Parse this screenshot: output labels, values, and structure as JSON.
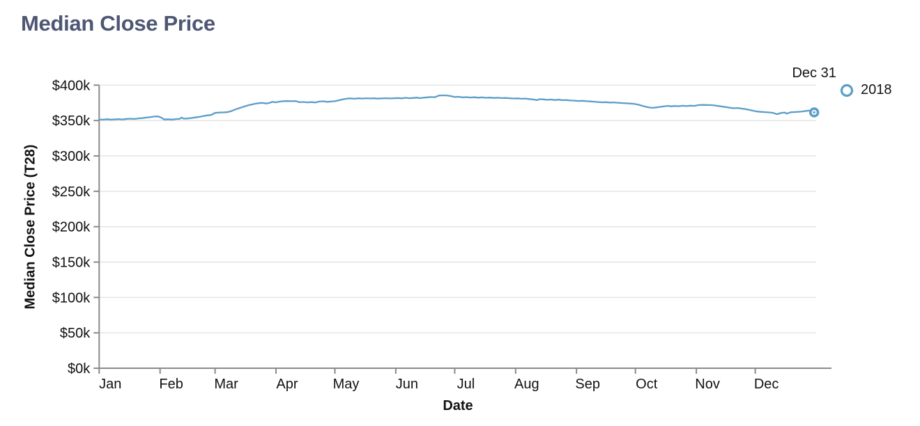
{
  "header": {
    "title": "Median Close Price"
  },
  "chart_data": {
    "type": "line",
    "title": "Median Close Price",
    "xlabel": "Date",
    "ylabel": "Median Close Price (T28)",
    "x_tick_labels": [
      "Jan",
      "Feb",
      "Mar",
      "Apr",
      "May",
      "Jun",
      "Jul",
      "Aug",
      "Sep",
      "Oct",
      "Nov",
      "Dec"
    ],
    "y_tick_labels": [
      "$0k",
      "$50k",
      "$100k",
      "$150k",
      "$200k",
      "$250k",
      "$300k",
      "$350k",
      "$400k"
    ],
    "ylim_k": [
      0,
      400
    ],
    "y_tick_step_k": 50,
    "grid": true,
    "legend": {
      "position": "top-right",
      "entries": [
        {
          "label": "2018",
          "marker": "open-circle",
          "color": "#5b9dc9"
        }
      ]
    },
    "annotation": {
      "text": "Dec 31",
      "attach": "last-point"
    },
    "last_point": {
      "label": "Dec 31",
      "value_k": 361.5
    },
    "series": [
      {
        "name": "2018",
        "unit": "USD (thousands)",
        "points_day_valuek": [
          [
            0,
            351.5
          ],
          [
            2,
            351.2
          ],
          [
            4,
            351.8
          ],
          [
            6,
            351.3
          ],
          [
            8,
            351.6
          ],
          [
            10,
            352.0
          ],
          [
            12,
            351.5
          ],
          [
            14,
            352.3
          ],
          [
            16,
            352.6
          ],
          [
            18,
            352.2
          ],
          [
            20,
            353.0
          ],
          [
            22,
            353.4
          ],
          [
            24,
            354.2
          ],
          [
            26,
            354.8
          ],
          [
            28,
            355.6
          ],
          [
            30,
            355.8
          ],
          [
            32,
            353.5
          ],
          [
            33,
            351.4
          ],
          [
            35,
            351.8
          ],
          [
            37,
            351.3
          ],
          [
            39,
            352.0
          ],
          [
            41,
            352.4
          ],
          [
            42,
            354.3
          ],
          [
            43,
            352.6
          ],
          [
            45,
            352.9
          ],
          [
            47,
            353.6
          ],
          [
            49,
            354.4
          ],
          [
            51,
            355.2
          ],
          [
            53,
            356.2
          ],
          [
            55,
            357.2
          ],
          [
            57,
            357.8
          ],
          [
            59,
            360.8
          ],
          [
            61,
            361.2
          ],
          [
            63,
            361.4
          ],
          [
            65,
            361.7
          ],
          [
            67,
            363.0
          ],
          [
            69,
            365.3
          ],
          [
            71,
            367.2
          ],
          [
            73,
            369.0
          ],
          [
            75,
            370.8
          ],
          [
            77,
            372.3
          ],
          [
            79,
            373.4
          ],
          [
            81,
            374.4
          ],
          [
            83,
            374.9
          ],
          [
            85,
            374.0
          ],
          [
            87,
            375.1
          ],
          [
            88,
            376.4
          ],
          [
            90,
            375.7
          ],
          [
            92,
            376.8
          ],
          [
            94,
            377.4
          ],
          [
            96,
            377.5
          ],
          [
            98,
            377.3
          ],
          [
            100,
            377.5
          ],
          [
            102,
            375.8
          ],
          [
            104,
            376.2
          ],
          [
            106,
            375.6
          ],
          [
            108,
            376.0
          ],
          [
            110,
            375.5
          ],
          [
            112,
            376.8
          ],
          [
            114,
            377.2
          ],
          [
            116,
            376.4
          ],
          [
            118,
            376.8
          ],
          [
            120,
            377.3
          ],
          [
            122,
            378.6
          ],
          [
            124,
            379.8
          ],
          [
            126,
            380.9
          ],
          [
            128,
            381.3
          ],
          [
            130,
            380.7
          ],
          [
            132,
            381.4
          ],
          [
            134,
            381.0
          ],
          [
            136,
            381.5
          ],
          [
            138,
            381.1
          ],
          [
            140,
            381.4
          ],
          [
            142,
            380.9
          ],
          [
            144,
            381.3
          ],
          [
            146,
            381.5
          ],
          [
            148,
            381.2
          ],
          [
            150,
            381.4
          ],
          [
            152,
            381.8
          ],
          [
            154,
            381.3
          ],
          [
            156,
            382.1
          ],
          [
            158,
            381.5
          ],
          [
            160,
            381.9
          ],
          [
            162,
            382.4
          ],
          [
            163,
            381.6
          ],
          [
            165,
            382.2
          ],
          [
            167,
            382.8
          ],
          [
            169,
            383.2
          ],
          [
            171,
            383.0
          ],
          [
            173,
            385.3
          ],
          [
            175,
            385.5
          ],
          [
            177,
            385.4
          ],
          [
            179,
            384.6
          ],
          [
            181,
            383.2
          ],
          [
            183,
            383.6
          ],
          [
            185,
            382.7
          ],
          [
            187,
            383.1
          ],
          [
            189,
            382.5
          ],
          [
            191,
            382.9
          ],
          [
            193,
            382.3
          ],
          [
            195,
            382.7
          ],
          [
            197,
            382.1
          ],
          [
            199,
            382.4
          ],
          [
            201,
            381.9
          ],
          [
            203,
            382.2
          ],
          [
            205,
            381.7
          ],
          [
            207,
            381.9
          ],
          [
            209,
            381.4
          ],
          [
            211,
            381.1
          ],
          [
            213,
            381.3
          ],
          [
            215,
            380.7
          ],
          [
            217,
            381.0
          ],
          [
            219,
            380.3
          ],
          [
            221,
            379.7
          ],
          [
            223,
            378.8
          ],
          [
            224,
            380.1
          ],
          [
            226,
            379.9
          ],
          [
            228,
            379.2
          ],
          [
            230,
            379.6
          ],
          [
            232,
            379.0
          ],
          [
            234,
            379.4
          ],
          [
            236,
            378.8
          ],
          [
            238,
            378.9
          ],
          [
            240,
            378.3
          ],
          [
            242,
            378.1
          ],
          [
            244,
            377.6
          ],
          [
            246,
            377.9
          ],
          [
            248,
            377.3
          ],
          [
            250,
            377.0
          ],
          [
            252,
            376.6
          ],
          [
            254,
            376.1
          ],
          [
            256,
            375.7
          ],
          [
            258,
            375.9
          ],
          [
            260,
            375.4
          ],
          [
            262,
            375.6
          ],
          [
            264,
            375.1
          ],
          [
            266,
            374.7
          ],
          [
            268,
            374.3
          ],
          [
            270,
            374.0
          ],
          [
            272,
            373.6
          ],
          [
            274,
            372.8
          ],
          [
            276,
            371.2
          ],
          [
            278,
            369.6
          ],
          [
            280,
            368.4
          ],
          [
            282,
            367.9
          ],
          [
            284,
            368.6
          ],
          [
            286,
            369.4
          ],
          [
            288,
            370.2
          ],
          [
            290,
            370.8
          ],
          [
            291,
            369.9
          ],
          [
            293,
            370.6
          ],
          [
            295,
            370.2
          ],
          [
            297,
            370.9
          ],
          [
            299,
            370.4
          ],
          [
            301,
            371.0
          ],
          [
            303,
            370.7
          ],
          [
            305,
            371.8
          ],
          [
            307,
            372.1
          ],
          [
            309,
            372.0
          ],
          [
            311,
            371.9
          ],
          [
            313,
            371.4
          ],
          [
            315,
            370.6
          ],
          [
            317,
            369.8
          ],
          [
            319,
            369.0
          ],
          [
            321,
            368.1
          ],
          [
            323,
            367.3
          ],
          [
            325,
            367.7
          ],
          [
            327,
            366.9
          ],
          [
            329,
            366.2
          ],
          [
            331,
            365.0
          ],
          [
            333,
            363.8
          ],
          [
            335,
            362.7
          ],
          [
            337,
            362.2
          ],
          [
            339,
            361.8
          ],
          [
            341,
            361.4
          ],
          [
            343,
            360.9
          ],
          [
            345,
            358.9
          ],
          [
            347,
            360.6
          ],
          [
            349,
            361.3
          ],
          [
            350,
            359.8
          ],
          [
            352,
            361.6
          ],
          [
            354,
            361.9
          ],
          [
            356,
            362.3
          ],
          [
            358,
            362.8
          ],
          [
            360,
            363.6
          ],
          [
            362,
            364.1
          ],
          [
            364,
            361.5
          ]
        ]
      }
    ]
  },
  "colors": {
    "line": "#5b9dc9",
    "grid": "#e3e3e3",
    "axis": "#8a8a8a",
    "tick_text": "#111111",
    "title": "#4d5673"
  },
  "icons": {
    "legend_marker": "open-circle",
    "end_marker": "open-circle"
  }
}
